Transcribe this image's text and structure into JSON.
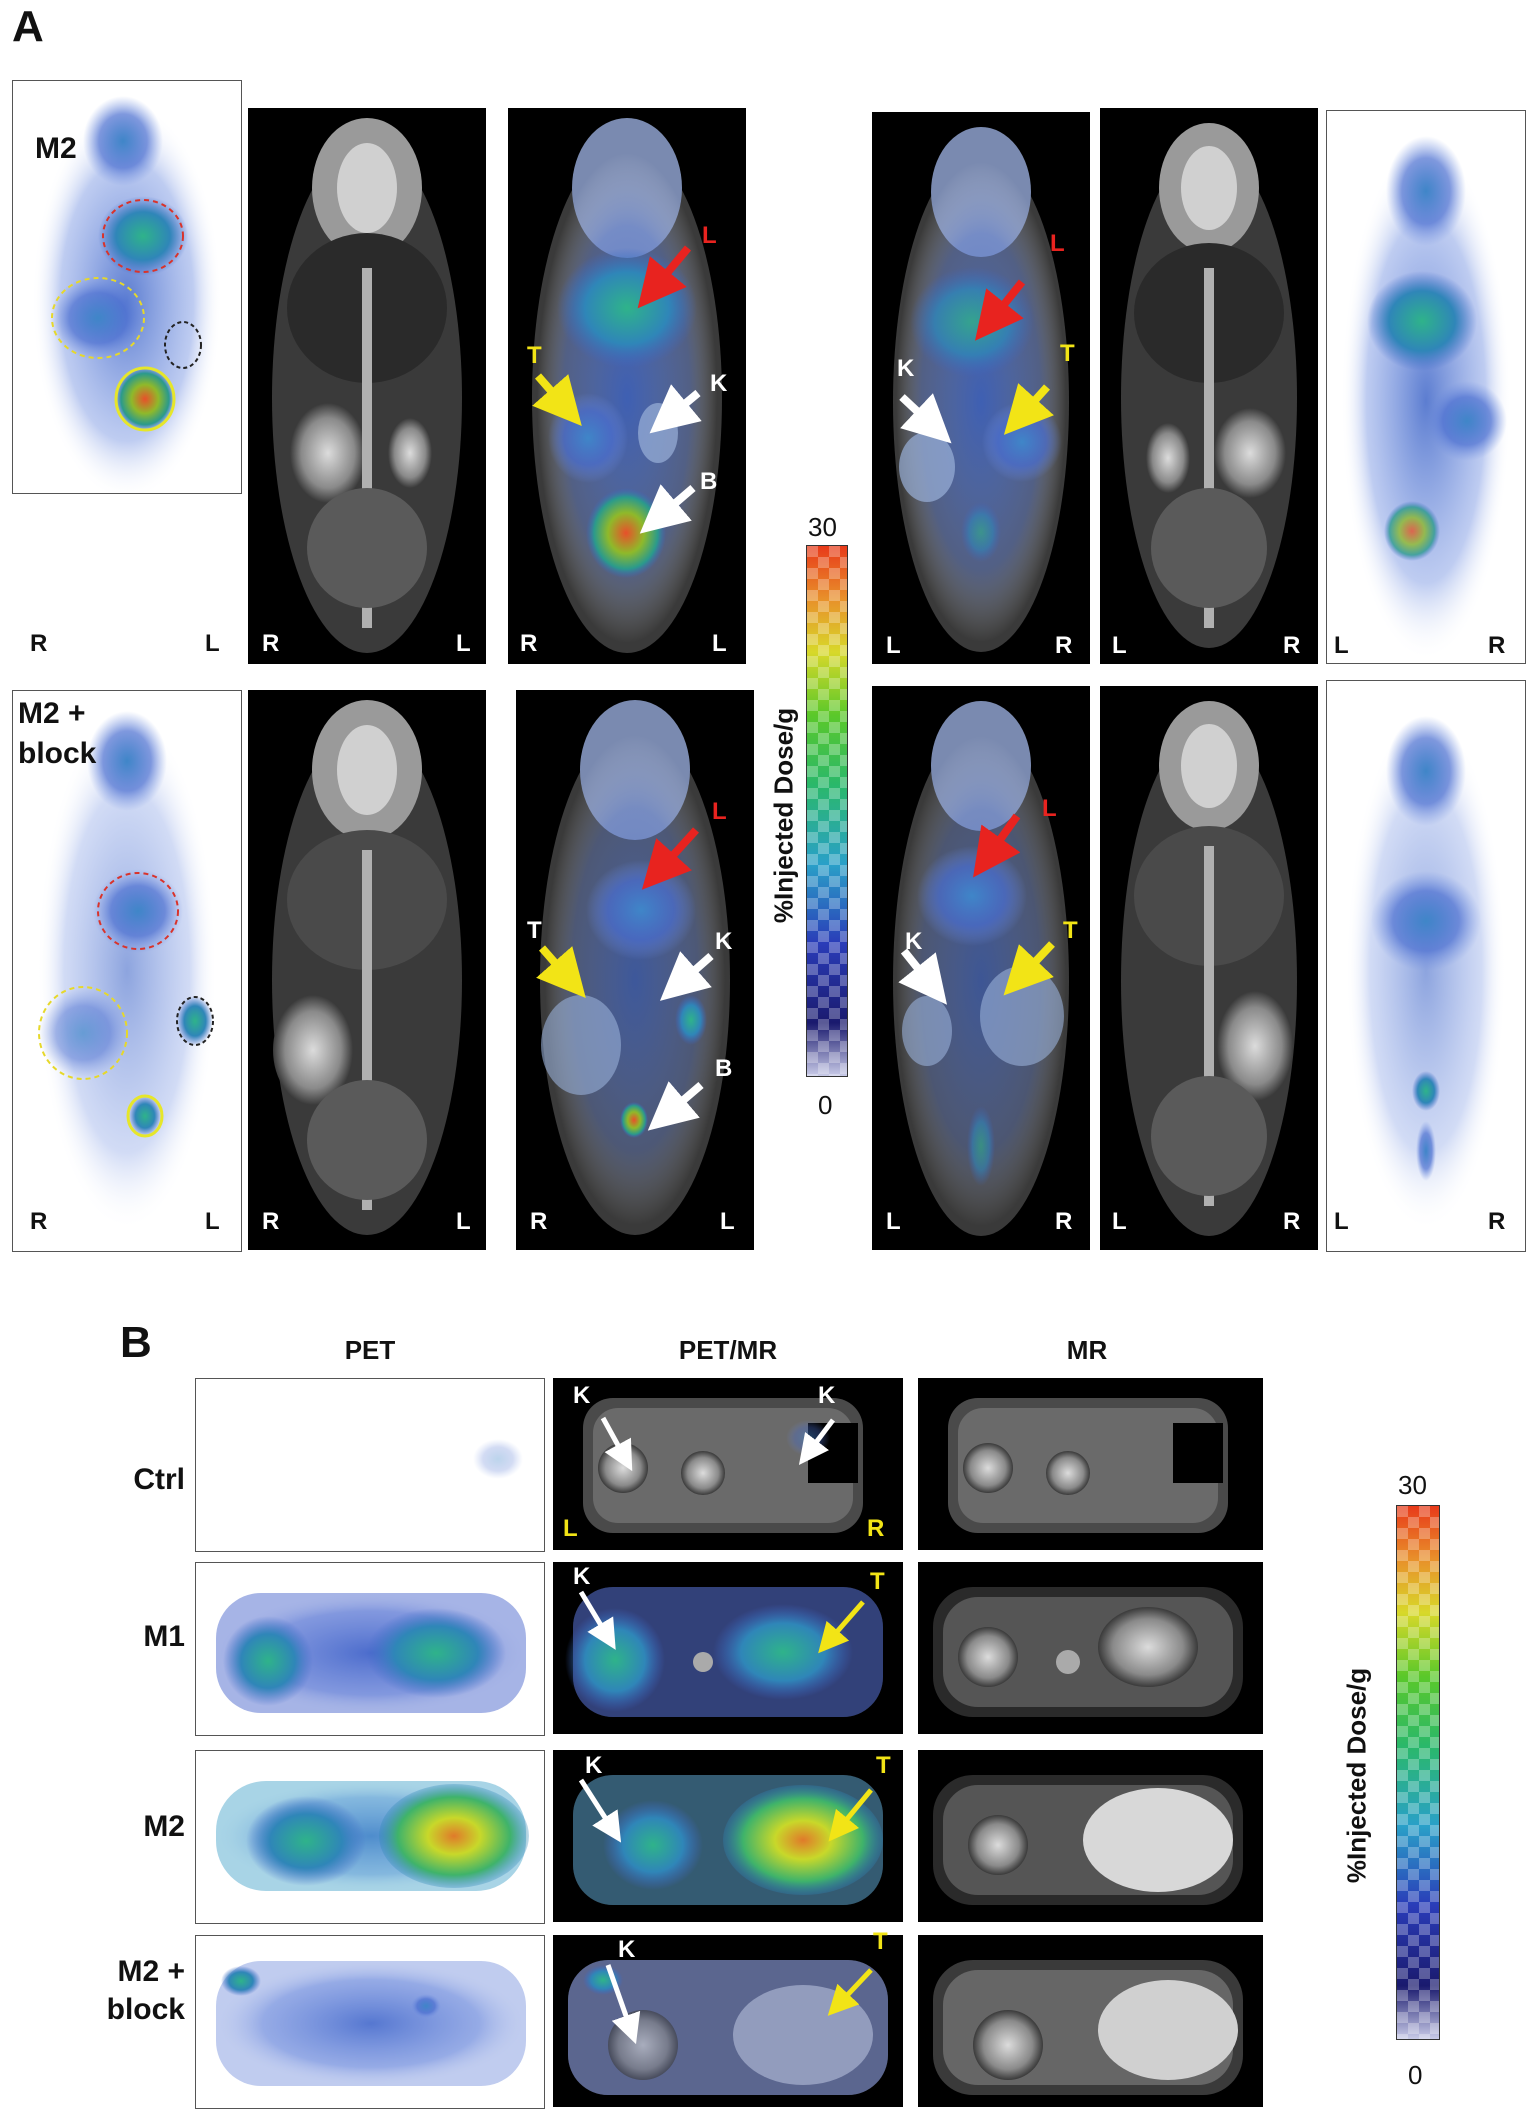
{
  "panel_a": {
    "letter": "A",
    "top_row_label": "M2",
    "bottom_row_label_line1": "M2 +",
    "bottom_row_label_line2": "block",
    "orient_r": "R",
    "orient_l": "L",
    "arrow_liver": "L",
    "arrow_tumor": "T",
    "arrow_kidney": "K",
    "arrow_bladder": "B",
    "scale": {
      "max": "30",
      "min": "0",
      "label": "%Injected  Dose/g"
    }
  },
  "panel_b": {
    "letter": "B",
    "col_headers": [
      "PET",
      "PET/MR",
      "MR"
    ],
    "rows": [
      "Ctrl",
      "M1",
      "M2",
      "M2 +\nblock"
    ],
    "row_m2block_line1": "M2 +",
    "row_m2block_line2": "block",
    "arrow_kidney": "K",
    "arrow_tumor": "T",
    "orient_l": "L",
    "orient_r": "R",
    "scale": {
      "max": "30",
      "min": "0",
      "label": "%Injected  Dose/g"
    }
  },
  "colors": {
    "liver_arrow": "#e8231f",
    "tumor_arrow": "#f2e416",
    "kidney_arrow": "#ffffff",
    "roi_liver": "#d9332b",
    "roi_tumor": "#e6d82a",
    "roi_kidney": "#222222",
    "roi_bladder": "#e6e62a"
  }
}
